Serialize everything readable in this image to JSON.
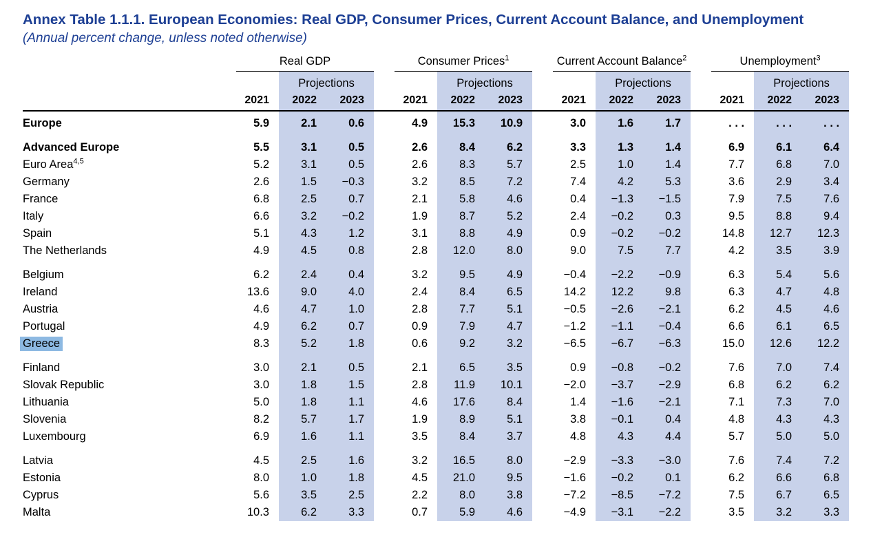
{
  "page": {
    "title": "Annex Table 1.1.1. European Economies: Real GDP, Consumer Prices, Current Account Balance, and Unemployment",
    "subtitle": "(Annual percent change, unless noted otherwise)"
  },
  "colors": {
    "title_blue": "#1d3f94",
    "projection_band": "#c8d2ea",
    "selection_highlight": "#8db9e2"
  },
  "table": {
    "projections_label": "Projections",
    "years": [
      "2021",
      "2022",
      "2023"
    ],
    "groups": [
      {
        "label": "Real GDP",
        "sup": ""
      },
      {
        "label": "Consumer Prices",
        "sup": "1"
      },
      {
        "label": "Current Account Balance",
        "sup": "2"
      },
      {
        "label": "Unemployment",
        "sup": "3"
      }
    ],
    "rows": [
      {
        "name": "Europe",
        "indent": 0,
        "bold": true,
        "values": [
          "5.9",
          "2.1",
          "0.6",
          "4.9",
          "15.3",
          "10.9",
          "3.0",
          "1.6",
          "1.7",
          ". . .",
          ". . .",
          ". . ."
        ]
      },
      {
        "name": "Advanced Europe",
        "indent": 1,
        "bold": true,
        "space_before": true,
        "values": [
          "5.5",
          "3.1",
          "0.5",
          "2.6",
          "8.4",
          "6.2",
          "3.3",
          "1.3",
          "1.4",
          "6.9",
          "6.1",
          "6.4"
        ]
      },
      {
        "name": "Euro Area",
        "sup": "4,5",
        "indent": 1,
        "values": [
          "5.2",
          "3.1",
          "0.5",
          "2.6",
          "8.3",
          "5.7",
          "2.5",
          "1.0",
          "1.4",
          "7.7",
          "6.8",
          "7.0"
        ]
      },
      {
        "name": "Germany",
        "indent": 2,
        "values": [
          "2.6",
          "1.5",
          "−0.3",
          "3.2",
          "8.5",
          "7.2",
          "7.4",
          "4.2",
          "5.3",
          "3.6",
          "2.9",
          "3.4"
        ]
      },
      {
        "name": "France",
        "indent": 2,
        "values": [
          "6.8",
          "2.5",
          "0.7",
          "2.1",
          "5.8",
          "4.6",
          "0.4",
          "−1.3",
          "−1.5",
          "7.9",
          "7.5",
          "7.6"
        ]
      },
      {
        "name": "Italy",
        "indent": 2,
        "values": [
          "6.6",
          "3.2",
          "−0.2",
          "1.9",
          "8.7",
          "5.2",
          "2.4",
          "−0.2",
          "0.3",
          "9.5",
          "8.8",
          "9.4"
        ]
      },
      {
        "name": "Spain",
        "indent": 2,
        "values": [
          "5.1",
          "4.3",
          "1.2",
          "3.1",
          "8.8",
          "4.9",
          "0.9",
          "−0.2",
          "−0.2",
          "14.8",
          "12.7",
          "12.3"
        ]
      },
      {
        "name": "The Netherlands",
        "indent": 2,
        "values": [
          "4.9",
          "4.5",
          "0.8",
          "2.8",
          "12.0",
          "8.0",
          "9.0",
          "7.5",
          "7.7",
          "4.2",
          "3.5",
          "3.9"
        ]
      },
      {
        "name": "Belgium",
        "indent": 2,
        "space_before": true,
        "values": [
          "6.2",
          "2.4",
          "0.4",
          "3.2",
          "9.5",
          "4.9",
          "−0.4",
          "−2.2",
          "−0.9",
          "6.3",
          "5.4",
          "5.6"
        ]
      },
      {
        "name": "Ireland",
        "indent": 2,
        "values": [
          "13.6",
          "9.0",
          "4.0",
          "2.4",
          "8.4",
          "6.5",
          "14.2",
          "12.2",
          "9.8",
          "6.3",
          "4.7",
          "4.8"
        ]
      },
      {
        "name": "Austria",
        "indent": 2,
        "values": [
          "4.6",
          "4.7",
          "1.0",
          "2.8",
          "7.7",
          "5.1",
          "−0.5",
          "−2.6",
          "−2.1",
          "6.2",
          "4.5",
          "4.6"
        ]
      },
      {
        "name": "Portugal",
        "indent": 2,
        "values": [
          "4.9",
          "6.2",
          "0.7",
          "0.9",
          "7.9",
          "4.7",
          "−1.2",
          "−1.1",
          "−0.4",
          "6.6",
          "6.1",
          "6.5"
        ]
      },
      {
        "name": "Greece",
        "indent": 2,
        "highlight": true,
        "values": [
          "8.3",
          "5.2",
          "1.8",
          "0.6",
          "9.2",
          "3.2",
          "−6.5",
          "−6.7",
          "−6.3",
          "15.0",
          "12.6",
          "12.2"
        ]
      },
      {
        "name": "Finland",
        "indent": 2,
        "space_before": true,
        "values": [
          "3.0",
          "2.1",
          "0.5",
          "2.1",
          "6.5",
          "3.5",
          "0.9",
          "−0.8",
          "−0.2",
          "7.6",
          "7.0",
          "7.4"
        ]
      },
      {
        "name": "Slovak Republic",
        "indent": 2,
        "values": [
          "3.0",
          "1.8",
          "1.5",
          "2.8",
          "11.9",
          "10.1",
          "−2.0",
          "−3.7",
          "−2.9",
          "6.8",
          "6.2",
          "6.2"
        ]
      },
      {
        "name": "Lithuania",
        "indent": 2,
        "values": [
          "5.0",
          "1.8",
          "1.1",
          "4.6",
          "17.6",
          "8.4",
          "1.4",
          "−1.6",
          "−2.1",
          "7.1",
          "7.3",
          "7.0"
        ]
      },
      {
        "name": "Slovenia",
        "indent": 2,
        "values": [
          "8.2",
          "5.7",
          "1.7",
          "1.9",
          "8.9",
          "5.1",
          "3.8",
          "−0.1",
          "0.4",
          "4.8",
          "4.3",
          "4.3"
        ]
      },
      {
        "name": "Luxembourg",
        "indent": 2,
        "values": [
          "6.9",
          "1.6",
          "1.1",
          "3.5",
          "8.4",
          "3.7",
          "4.8",
          "4.3",
          "4.4",
          "5.7",
          "5.0",
          "5.0"
        ]
      },
      {
        "name": "Latvia",
        "indent": 2,
        "space_before": true,
        "values": [
          "4.5",
          "2.5",
          "1.6",
          "3.2",
          "16.5",
          "8.0",
          "−2.9",
          "−3.3",
          "−3.0",
          "7.6",
          "7.4",
          "7.2"
        ]
      },
      {
        "name": "Estonia",
        "indent": 2,
        "values": [
          "8.0",
          "1.0",
          "1.8",
          "4.5",
          "21.0",
          "9.5",
          "−1.6",
          "−0.2",
          "0.1",
          "6.2",
          "6.6",
          "6.8"
        ]
      },
      {
        "name": "Cyprus",
        "indent": 2,
        "values": [
          "5.6",
          "3.5",
          "2.5",
          "2.2",
          "8.0",
          "3.8",
          "−7.2",
          "−8.5",
          "−7.2",
          "7.5",
          "6.7",
          "6.5"
        ]
      },
      {
        "name": "Malta",
        "indent": 2,
        "values": [
          "10.3",
          "6.2",
          "3.3",
          "0.7",
          "5.9",
          "4.6",
          "−4.9",
          "−3.1",
          "−2.2",
          "3.5",
          "3.2",
          "3.3"
        ]
      }
    ]
  }
}
